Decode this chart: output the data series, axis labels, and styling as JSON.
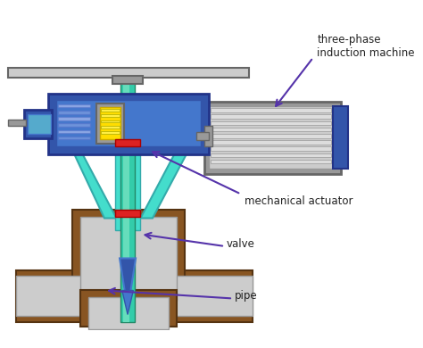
{
  "bg_color": "#ffffff",
  "title": "",
  "labels": {
    "three_phase": "three-phase\ninduction machine",
    "mechanical_actuator": "mechanical actuator",
    "valve": "valve",
    "pipe": "pipe"
  },
  "colors": {
    "blue_dark": "#3355aa",
    "blue_medium": "#4477cc",
    "blue_light": "#55aacc",
    "cyan": "#44ddcc",
    "teal": "#33ccaa",
    "yellow": "#ffdd00",
    "red": "#dd2222",
    "brown": "#885522",
    "gray_light": "#cccccc",
    "gray_medium": "#999999",
    "gray_dark": "#666666",
    "gray_motor": "#aaaaaa",
    "white": "#ffffff",
    "arrow_color": "#5533aa",
    "spring_color": "#7799dd",
    "green_stem": "#44bb88"
  }
}
